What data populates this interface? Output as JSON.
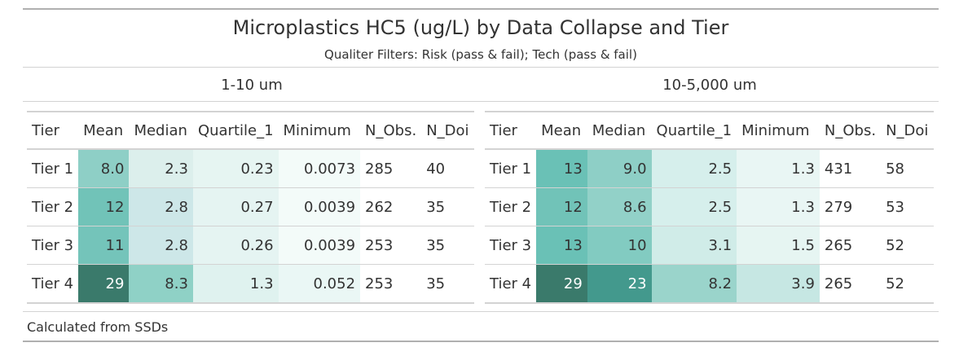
{
  "title": "Microplastics HC5 (ug/L) by Data Collapse and Tier",
  "subtitle": "Qualiter Filters: Risk (pass & fail); Tech (pass & fail)",
  "source_note": "Calculated from SSDs",
  "columns": [
    "Tier",
    "Mean",
    "Median",
    "Quartile_1",
    "Minimum",
    "N_Obs.",
    "N_Doi"
  ],
  "chart_data": {
    "type": "table",
    "title": "Microplastics HC5 (ug/L) by Data Collapse and Tier",
    "subtitle": "Qualiter Filters: Risk (pass & fail); Tech (pass & fail)",
    "groups": [
      {
        "label": "1-10 um",
        "rows": [
          {
            "tier": "Tier 1",
            "mean": "8.0",
            "median": "2.3",
            "quartile_1": "0.23",
            "minimum": "0.0073",
            "n_obs": "285",
            "n_doi": "40",
            "fills": [
              "#8ecfc6",
              "#dcefec",
              "#e6f5f2",
              "#f3fbf9"
            ]
          },
          {
            "tier": "Tier 2",
            "mean": "12",
            "median": "2.8",
            "quartile_1": "0.27",
            "minimum": "0.0039",
            "n_obs": "262",
            "n_doi": "35",
            "fills": [
              "#71c3b8",
              "#cde7e8",
              "#e5f4f2",
              "#f3fbf9"
            ]
          },
          {
            "tier": "Tier 3",
            "mean": "11",
            "median": "2.8",
            "quartile_1": "0.26",
            "minimum": "0.0039",
            "n_obs": "253",
            "n_doi": "35",
            "fills": [
              "#74c4ba",
              "#cde7e8",
              "#e5f4f2",
              "#f3fbf9"
            ]
          },
          {
            "tier": "Tier 4",
            "mean": "29",
            "median": "8.3",
            "quartile_1": "1.3",
            "minimum": "0.052",
            "n_obs": "253",
            "n_doi": "35",
            "fills": [
              "#3a7a6b",
              "#8fd1c6",
              "#dff2ef",
              "#eaf7f5"
            ]
          }
        ]
      },
      {
        "label": "10-5,000 um",
        "rows": [
          {
            "tier": "Tier 1",
            "mean": "13",
            "median": "9.0",
            "quartile_1": "2.5",
            "minimum": "1.3",
            "n_obs": "431",
            "n_doi": "58",
            "fills": [
              "#6ac1b6",
              "#8ecfc6",
              "#d6efec",
              "#e9f6f4"
            ]
          },
          {
            "tier": "Tier 2",
            "mean": "12",
            "median": "8.6",
            "quartile_1": "2.5",
            "minimum": "1.3",
            "n_obs": "279",
            "n_doi": "53",
            "fills": [
              "#71c3b8",
              "#92d1c8",
              "#d6efec",
              "#e9f6f4"
            ]
          },
          {
            "tier": "Tier 3",
            "mean": "13",
            "median": "10",
            "quartile_1": "3.1",
            "minimum": "1.5",
            "n_obs": "265",
            "n_doi": "52",
            "fills": [
              "#6ac1b6",
              "#82cbc1",
              "#d0ece8",
              "#e6f5f2"
            ]
          },
          {
            "tier": "Tier 4",
            "mean": "29",
            "median": "23",
            "quartile_1": "8.2",
            "minimum": "3.9",
            "n_obs": "265",
            "n_doi": "52",
            "fills": [
              "#3a7a6b",
              "#43998d",
              "#9ad4cb",
              "#c6e7e3"
            ]
          }
        ]
      }
    ]
  }
}
